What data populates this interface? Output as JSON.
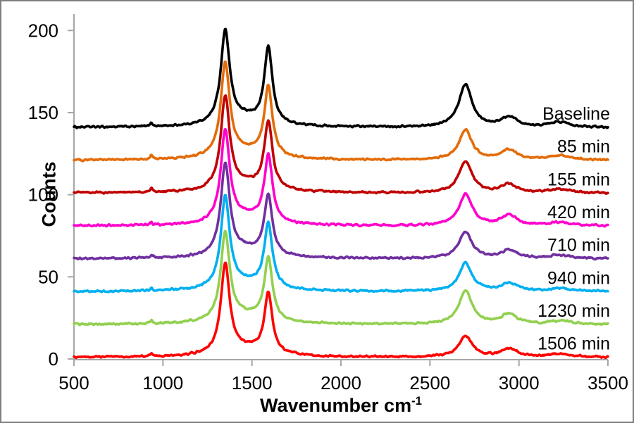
{
  "figure": {
    "background": "#ffffff",
    "border_color": "#7f7f7f",
    "axis_color": "#a6a6a6",
    "text_color": "#000000"
  },
  "chart_data": {
    "type": "line",
    "title": "",
    "xlabel_main": "Wavenumber cm",
    "xlabel_sup": "-1",
    "ylabel": "Counts",
    "xlim": [
      500,
      3500
    ],
    "ylim": [
      0,
      200
    ],
    "xticks": [
      500,
      1000,
      1500,
      2000,
      2500,
      3000,
      3500
    ],
    "yticks": [
      0,
      50,
      100,
      150,
      200
    ],
    "grid": false,
    "legend_position": "inline-right-above-each-trace",
    "x_step": 4,
    "noise_amplitude": 0.8,
    "peak_format": "[center_cm-1, height_counts_above_offset, hwhm_cm-1] lorentzian",
    "series": [
      {
        "label": "Baseline",
        "color": "#000000",
        "offset": 141,
        "peaks": [
          [
            935,
            2.5,
            7
          ],
          [
            1350,
            56,
            30
          ],
          [
            1460,
            5,
            150
          ],
          [
            1592,
            46,
            27
          ],
          [
            2700,
            26,
            45
          ],
          [
            2945,
            6,
            55
          ],
          [
            3230,
            3,
            70
          ]
        ]
      },
      {
        "label": "85 min",
        "color": "#e36c0a",
        "offset": 121,
        "peaks": [
          [
            935,
            2.5,
            7
          ],
          [
            1350,
            56,
            30
          ],
          [
            1460,
            5,
            150
          ],
          [
            1592,
            42,
            27
          ],
          [
            2700,
            18,
            45
          ],
          [
            2945,
            6,
            55
          ],
          [
            3230,
            2.5,
            70
          ]
        ]
      },
      {
        "label": "155 min",
        "color": "#c00000",
        "offset": 101,
        "peaks": [
          [
            935,
            2.5,
            7
          ],
          [
            1350,
            56,
            30
          ],
          [
            1460,
            5,
            150
          ],
          [
            1592,
            41,
            27
          ],
          [
            2700,
            19,
            45
          ],
          [
            2945,
            5,
            55
          ],
          [
            3230,
            2,
            70
          ]
        ]
      },
      {
        "label": "420 min",
        "color": "#ff00cc",
        "offset": 81,
        "peaks": [
          [
            935,
            2,
            7
          ],
          [
            1350,
            55,
            30
          ],
          [
            1460,
            5,
            150
          ],
          [
            1592,
            40,
            27
          ],
          [
            2700,
            19,
            45
          ],
          [
            2945,
            6,
            55
          ],
          [
            3230,
            2,
            70
          ]
        ]
      },
      {
        "label": "710 min",
        "color": "#7030a0",
        "offset": 61,
        "peaks": [
          [
            935,
            2,
            7
          ],
          [
            1350,
            55,
            30
          ],
          [
            1460,
            5,
            150
          ],
          [
            1592,
            36,
            27
          ],
          [
            2700,
            16,
            45
          ],
          [
            2945,
            5,
            55
          ],
          [
            3230,
            2,
            70
          ]
        ]
      },
      {
        "label": "940 min",
        "color": "#00b0f0",
        "offset": 41,
        "peaks": [
          [
            935,
            2,
            7
          ],
          [
            1350,
            55,
            30
          ],
          [
            1460,
            5,
            150
          ],
          [
            1592,
            39,
            27
          ],
          [
            2700,
            17,
            45
          ],
          [
            2945,
            5,
            55
          ],
          [
            3230,
            2,
            70
          ]
        ]
      },
      {
        "label": "1230 min",
        "color": "#92d050",
        "offset": 21,
        "peaks": [
          [
            935,
            2,
            7
          ],
          [
            1350,
            53,
            30
          ],
          [
            1460,
            5,
            150
          ],
          [
            1592,
            38,
            27
          ],
          [
            2700,
            20,
            45
          ],
          [
            2945,
            6,
            55
          ],
          [
            3230,
            2,
            70
          ]
        ]
      },
      {
        "label": "1506 min",
        "color": "#ff0000",
        "offset": 1,
        "peaks": [
          [
            935,
            2,
            7
          ],
          [
            1350,
            54,
            30
          ],
          [
            1460,
            5,
            150
          ],
          [
            1592,
            36,
            27
          ],
          [
            2700,
            13,
            45
          ],
          [
            2945,
            5,
            55
          ],
          [
            3230,
            2,
            70
          ]
        ]
      }
    ]
  }
}
